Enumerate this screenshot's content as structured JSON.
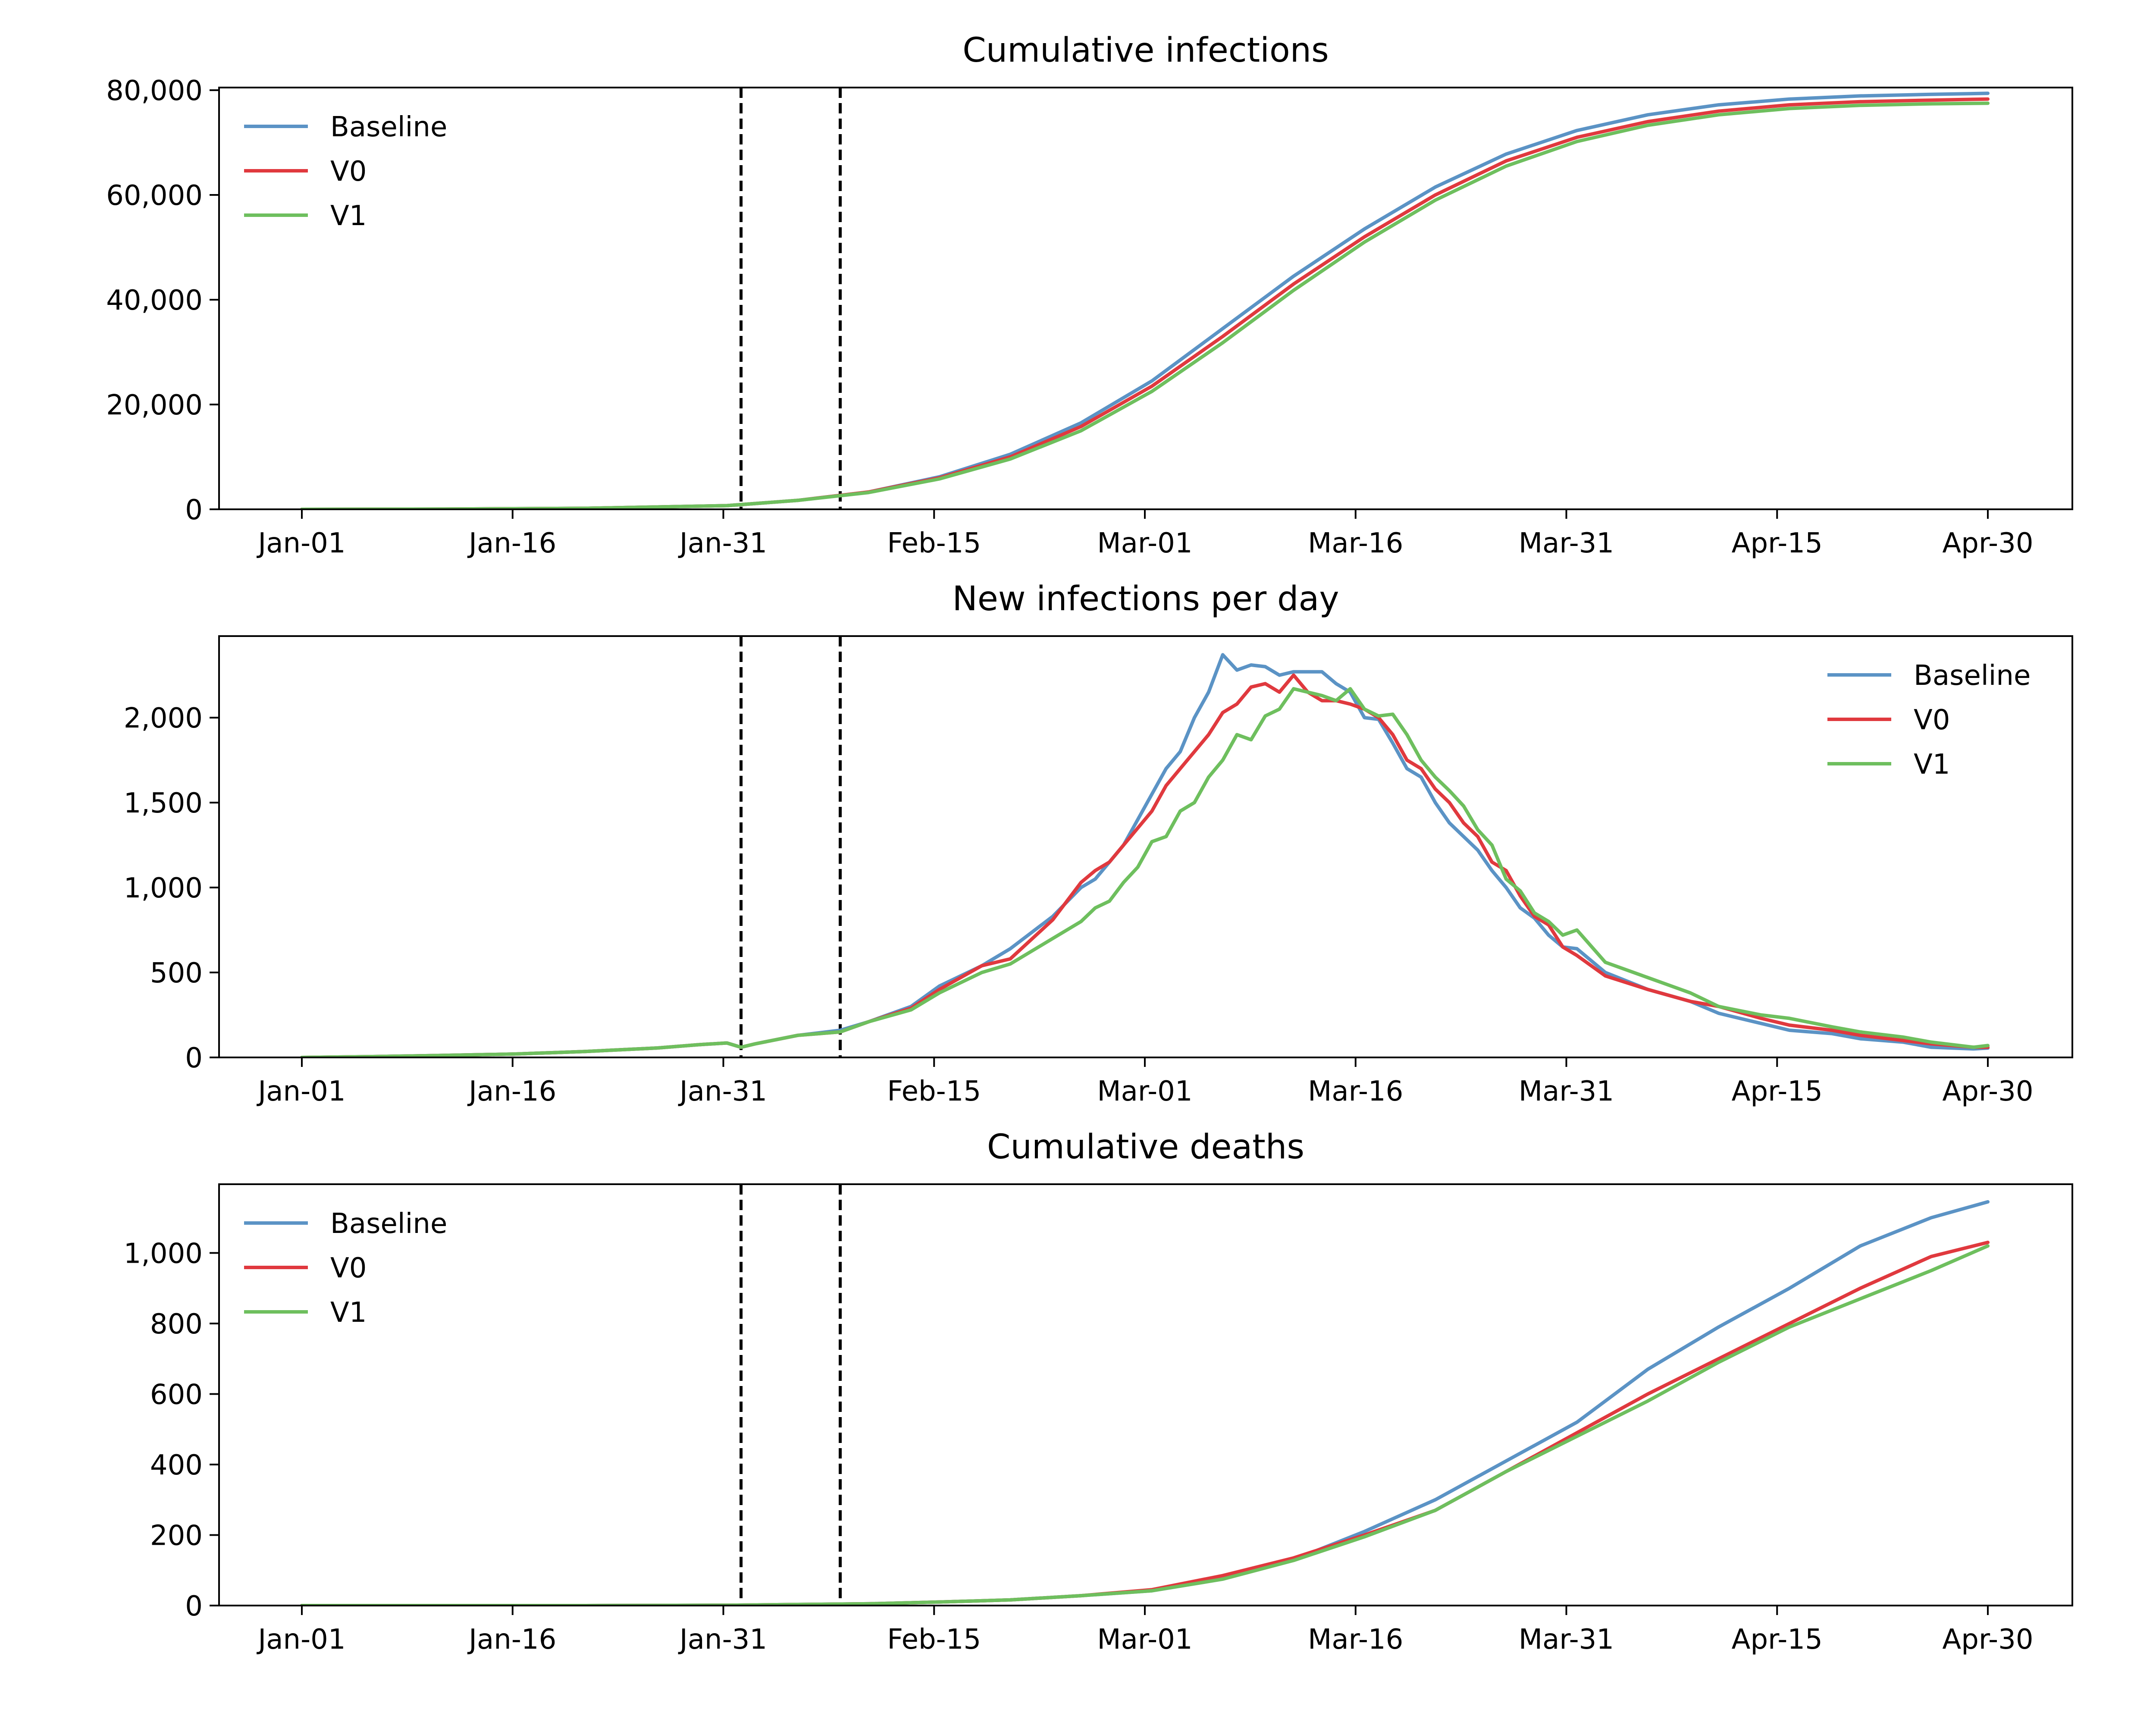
{
  "chart_data": [
    {
      "type": "line",
      "title": "Cumulative infections",
      "xlabel": "",
      "ylabel": "",
      "x_ticks": [
        "Jan-01",
        "Jan-16",
        "Jan-31",
        "Feb-15",
        "Mar-01",
        "Mar-16",
        "Mar-31",
        "Apr-15",
        "Apr-30"
      ],
      "y_ticks": [
        "0",
        "20,000",
        "40,000",
        "60,000",
        "80,000"
      ],
      "ylim": [
        0,
        80500
      ],
      "legend": "upper left",
      "grid": false,
      "series": [
        {
          "name": "Baseline",
          "color": "#5b93c5",
          "x": [
            0,
            10,
            20,
            30,
            35,
            40,
            45,
            50,
            55,
            60,
            65,
            70,
            75,
            80,
            85,
            90,
            95,
            100,
            105,
            110,
            115,
            119
          ],
          "y": [
            0,
            50,
            200,
            700,
            1700,
            3300,
            6200,
            10500,
            16500,
            24500,
            34500,
            44500,
            53500,
            61500,
            67800,
            72300,
            75300,
            77200,
            78300,
            78900,
            79200,
            79400
          ]
        },
        {
          "name": "V0",
          "color": "#e0393e",
          "x": [
            0,
            10,
            20,
            30,
            35,
            40,
            45,
            50,
            55,
            60,
            65,
            70,
            75,
            80,
            85,
            90,
            95,
            100,
            105,
            110,
            115,
            119
          ],
          "y": [
            0,
            50,
            200,
            700,
            1700,
            3300,
            6000,
            10000,
            15800,
            23500,
            33000,
            43000,
            52000,
            60000,
            66500,
            71000,
            74000,
            76000,
            77200,
            77800,
            78100,
            78300
          ]
        },
        {
          "name": "V1",
          "color": "#6ebf5e",
          "x": [
            0,
            10,
            20,
            30,
            35,
            40,
            45,
            50,
            55,
            60,
            65,
            70,
            75,
            80,
            85,
            90,
            95,
            100,
            105,
            110,
            115,
            119
          ],
          "y": [
            0,
            50,
            200,
            700,
            1700,
            3200,
            5800,
            9600,
            15000,
            22500,
            31800,
            41800,
            51000,
            59000,
            65500,
            70200,
            73300,
            75300,
            76500,
            77100,
            77400,
            77500
          ]
        }
      ],
      "vlines": [
        31,
        38
      ]
    },
    {
      "type": "line",
      "title": "New infections per day",
      "xlabel": "",
      "ylabel": "",
      "x_ticks": [
        "Jan-01",
        "Jan-16",
        "Jan-31",
        "Feb-15",
        "Mar-01",
        "Mar-16",
        "Mar-31",
        "Apr-15",
        "Apr-30"
      ],
      "y_ticks": [
        "0",
        "500",
        "1,000",
        "1,500",
        "2,000"
      ],
      "ylim": [
        0,
        2480
      ],
      "legend": "upper right",
      "grid": false,
      "series": [
        {
          "name": "Baseline",
          "color": "#5b93c5",
          "x": [
            0,
            5,
            10,
            15,
            20,
            25,
            28,
            30,
            31,
            32,
            35,
            38,
            40,
            43,
            45,
            48,
            50,
            53,
            55,
            56,
            57,
            58,
            59,
            60,
            61,
            62,
            63,
            64,
            65,
            66,
            67,
            68,
            69,
            70,
            71,
            72,
            73,
            74,
            75,
            76,
            77,
            78,
            79,
            80,
            81,
            82,
            83,
            84,
            85,
            86,
            87,
            88,
            89,
            90,
            92,
            95,
            98,
            100,
            103,
            105,
            108,
            110,
            113,
            115,
            118,
            119
          ],
          "y": [
            0,
            5,
            12,
            20,
            35,
            55,
            75,
            85,
            60,
            80,
            130,
            160,
            210,
            300,
            420,
            540,
            640,
            830,
            1000,
            1050,
            1150,
            1250,
            1400,
            1550,
            1700,
            1800,
            2000,
            2150,
            2370,
            2280,
            2310,
            2300,
            2250,
            2270,
            2270,
            2270,
            2200,
            2150,
            2000,
            1990,
            1850,
            1700,
            1650,
            1500,
            1380,
            1300,
            1220,
            1100,
            1000,
            880,
            820,
            720,
            650,
            640,
            500,
            400,
            330,
            260,
            200,
            160,
            140,
            110,
            90,
            60,
            50,
            55
          ]
        },
        {
          "name": "V0",
          "color": "#e0393e",
          "x": [
            0,
            5,
            10,
            15,
            20,
            25,
            28,
            30,
            31,
            32,
            35,
            38,
            40,
            43,
            45,
            48,
            50,
            53,
            55,
            56,
            57,
            58,
            59,
            60,
            61,
            62,
            63,
            64,
            65,
            66,
            67,
            68,
            69,
            70,
            71,
            72,
            73,
            74,
            75,
            76,
            77,
            78,
            79,
            80,
            81,
            82,
            83,
            84,
            85,
            86,
            87,
            88,
            89,
            90,
            92,
            95,
            98,
            100,
            103,
            105,
            108,
            110,
            113,
            115,
            118,
            119
          ],
          "y": [
            0,
            5,
            12,
            20,
            35,
            55,
            75,
            85,
            60,
            80,
            130,
            150,
            210,
            290,
            400,
            540,
            580,
            810,
            1030,
            1100,
            1150,
            1250,
            1350,
            1450,
            1600,
            1700,
            1800,
            1900,
            2030,
            2080,
            2180,
            2200,
            2150,
            2250,
            2150,
            2100,
            2100,
            2080,
            2050,
            2000,
            1900,
            1750,
            1700,
            1580,
            1500,
            1380,
            1300,
            1150,
            1100,
            950,
            830,
            780,
            650,
            600,
            480,
            400,
            330,
            300,
            230,
            190,
            160,
            130,
            100,
            80,
            60,
            60
          ]
        },
        {
          "name": "V1",
          "color": "#6ebf5e",
          "x": [
            0,
            5,
            10,
            15,
            20,
            25,
            28,
            30,
            31,
            32,
            35,
            38,
            40,
            43,
            45,
            48,
            50,
            53,
            55,
            56,
            57,
            58,
            59,
            60,
            61,
            62,
            63,
            64,
            65,
            66,
            67,
            68,
            69,
            70,
            71,
            72,
            73,
            74,
            75,
            76,
            77,
            78,
            79,
            80,
            81,
            82,
            83,
            84,
            85,
            86,
            87,
            88,
            89,
            90,
            92,
            95,
            98,
            100,
            103,
            105,
            108,
            110,
            113,
            115,
            118,
            119
          ],
          "y": [
            0,
            5,
            12,
            20,
            35,
            55,
            75,
            85,
            60,
            80,
            130,
            150,
            210,
            280,
            380,
            500,
            550,
            700,
            800,
            880,
            920,
            1030,
            1120,
            1270,
            1300,
            1450,
            1500,
            1650,
            1750,
            1900,
            1870,
            2010,
            2050,
            2170,
            2150,
            2130,
            2100,
            2170,
            2050,
            2010,
            2020,
            1900,
            1750,
            1650,
            1570,
            1480,
            1340,
            1250,
            1050,
            980,
            850,
            800,
            720,
            750,
            560,
            470,
            380,
            300,
            250,
            230,
            180,
            150,
            120,
            90,
            60,
            70
          ]
        }
      ],
      "vlines": [
        31,
        38
      ]
    },
    {
      "type": "line",
      "title": "Cumulative deaths",
      "xlabel": "",
      "ylabel": "",
      "x_ticks": [
        "Jan-01",
        "Jan-16",
        "Jan-31",
        "Feb-15",
        "Mar-01",
        "Mar-16",
        "Mar-31",
        "Apr-15",
        "Apr-30"
      ],
      "y_ticks": [
        "0",
        "200",
        "400",
        "600",
        "800",
        "1,000"
      ],
      "ylim": [
        0,
        1195
      ],
      "legend": "upper left",
      "grid": false,
      "series": [
        {
          "name": "Baseline",
          "color": "#5b93c5",
          "x": [
            0,
            20,
            30,
            35,
            40,
            45,
            50,
            55,
            60,
            65,
            70,
            75,
            80,
            85,
            90,
            95,
            100,
            105,
            110,
            115,
            119
          ],
          "y": [
            0,
            0,
            1,
            3,
            5,
            10,
            16,
            28,
            42,
            75,
            130,
            210,
            300,
            410,
            520,
            670,
            790,
            900,
            1020,
            1100,
            1145
          ]
        },
        {
          "name": "V0",
          "color": "#e0393e",
          "x": [
            0,
            20,
            30,
            35,
            40,
            45,
            50,
            55,
            60,
            65,
            70,
            75,
            80,
            85,
            90,
            95,
            100,
            105,
            110,
            115,
            119
          ],
          "y": [
            0,
            0,
            1,
            3,
            5,
            10,
            16,
            28,
            45,
            85,
            135,
            200,
            270,
            380,
            490,
            600,
            700,
            800,
            900,
            990,
            1030
          ]
        },
        {
          "name": "V1",
          "color": "#6ebf5e",
          "x": [
            0,
            20,
            30,
            35,
            40,
            45,
            50,
            55,
            60,
            65,
            70,
            75,
            80,
            85,
            90,
            95,
            100,
            105,
            110,
            115,
            119
          ],
          "y": [
            0,
            0,
            1,
            3,
            5,
            10,
            16,
            28,
            42,
            75,
            128,
            195,
            270,
            380,
            480,
            580,
            690,
            790,
            870,
            950,
            1020
          ]
        }
      ],
      "vlines": [
        31,
        38
      ]
    }
  ]
}
